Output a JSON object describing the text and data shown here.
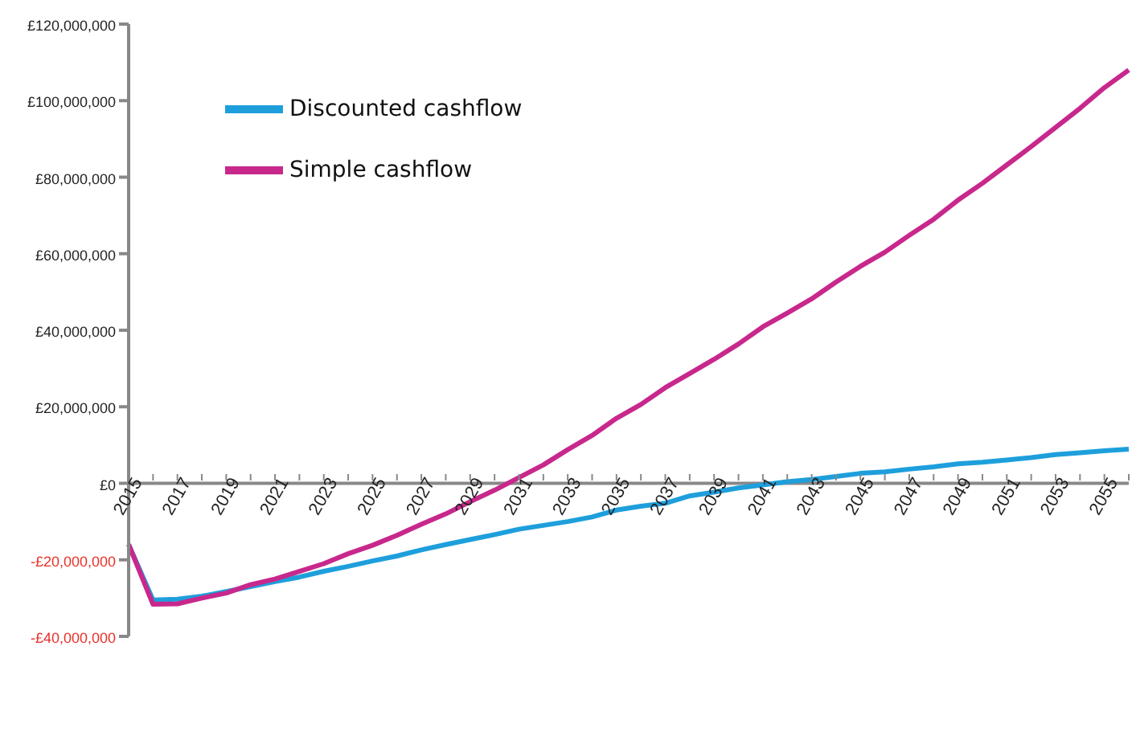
{
  "chart_data": {
    "type": "line",
    "categories": [
      "2015",
      null,
      "2017",
      null,
      "2019",
      null,
      "2021",
      null,
      "2023",
      null,
      "2025",
      null,
      "2027",
      null,
      "2029",
      null,
      "2031",
      null,
      "2033",
      null,
      "2035",
      null,
      "2037",
      null,
      "2039",
      null,
      "2041",
      null,
      "2043",
      null,
      "2045",
      null,
      "2047",
      null,
      "2049",
      null,
      "2051",
      null,
      "2053",
      null,
      "2055",
      null
    ],
    "series": [
      {
        "name": "Discounted cashflow",
        "color": "#1e9fdc",
        "values": [
          -16000000,
          -30500000,
          -30300000,
          -29500000,
          -28300000,
          -27000000,
          -25700000,
          -24500000,
          -23000000,
          -21700000,
          -20300000,
          -19000000,
          -17400000,
          -16000000,
          -14700000,
          -13400000,
          -12000000,
          -11000000,
          -10000000,
          -8800000,
          -7000000,
          -6000000,
          -5200000,
          -3300000,
          -2300000,
          -1200000,
          -400000,
          400000,
          1000000,
          1800000,
          2600000,
          3000000,
          3700000,
          4300000,
          5100000,
          5500000,
          6100000,
          6700000,
          7500000,
          8000000,
          8500000,
          8900000
        ]
      },
      {
        "name": "Simple cashflow",
        "color": "#c8288c",
        "values": [
          -16000000,
          -31600000,
          -31500000,
          -30000000,
          -28700000,
          -26500000,
          -25000000,
          -23000000,
          -21000000,
          -18400000,
          -16200000,
          -13600000,
          -10700000,
          -8000000,
          -4800000,
          -1800000,
          1500000,
          4800000,
          8800000,
          12500000,
          17000000,
          20600000,
          25000000,
          28700000,
          32400000,
          36400000,
          40900000,
          44500000,
          48200000,
          52600000,
          56700000,
          60400000,
          64800000,
          69000000,
          74000000,
          78400000,
          83200000,
          88000000,
          93000000,
          98000000,
          103400000,
          108000000
        ]
      }
    ],
    "ylim": [
      -40000000,
      120000000
    ],
    "yticks": [
      {
        "value": -40000000,
        "label": "-£40,000,000"
      },
      {
        "value": -20000000,
        "label": "-£20,000,000"
      },
      {
        "value": 0,
        "label": "£0"
      },
      {
        "value": 20000000,
        "label": "£20,000,000"
      },
      {
        "value": 40000000,
        "label": "£40,000,000"
      },
      {
        "value": 60000000,
        "label": "£60,000,000"
      },
      {
        "value": 80000000,
        "label": "£80,000,000"
      },
      {
        "value": 100000000,
        "label": "£100,000,000"
      },
      {
        "value": 120000000,
        "label": "£120,000,000"
      }
    ],
    "grid": false,
    "legend": "top left"
  }
}
